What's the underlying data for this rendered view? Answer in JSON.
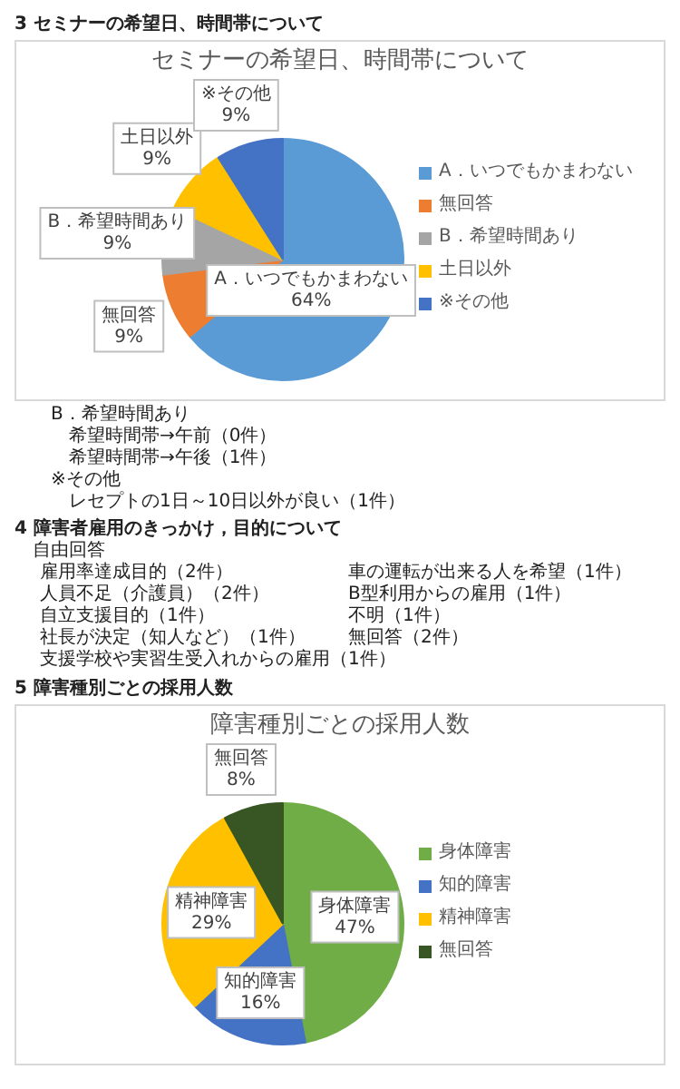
{
  "chart_data": [
    {
      "type": "pie",
      "title": "セミナーの希望日、時間帯について",
      "subtitle": "3 セミナーの希望日、時間帯について",
      "categories": [
        "A．いつでもかまわない",
        "無回答",
        "B．希望時間あり",
        "土日以外",
        "※その他"
      ],
      "values": [
        64,
        9,
        9,
        9,
        9
      ],
      "value_labels": [
        "64%",
        "9%",
        "9%",
        "9%",
        "9%"
      ],
      "colors": [
        "#5b9bd5",
        "#ed7d31",
        "#a5a5a5",
        "#ffc000",
        "#4472c4"
      ],
      "legend": "right",
      "annotations": [
        "B．希望時間あり",
        "　希望時間帯→午前（0件）",
        "　希望時間帯→午後（1件）",
        "※その他",
        "　レセプトの1日～10日以外が良い（1件）"
      ]
    },
    {
      "type": "pie",
      "title": "障害種別ごとの採用人数",
      "subtitle": "5 障害種別ごとの採用人数",
      "categories": [
        "身体障害",
        "知的障害",
        "精神障害",
        "無回答"
      ],
      "values": [
        47,
        16,
        29,
        8
      ],
      "value_labels": [
        "47%",
        "16%",
        "29%",
        "8%"
      ],
      "colors": [
        "#70ad47",
        "#4472c4",
        "#ffc000",
        "#375623"
      ],
      "legend": "right",
      "annotations": [
        "4 障害者雇用のきっかけ，目的について",
        "自由回答",
        "雇用率達成目的（2件）",
        "車の運転が出来る人を希望（1件）",
        "人員不足（介護員）（2件）",
        "B型利用からの雇用（1件）",
        "自立支援目的（1件）",
        "不明（1件）",
        "社長が決定（知人など）（1件）",
        "無回答（2件）",
        "支援学校や実習生受入れからの雇用（1件）"
      ]
    }
  ]
}
